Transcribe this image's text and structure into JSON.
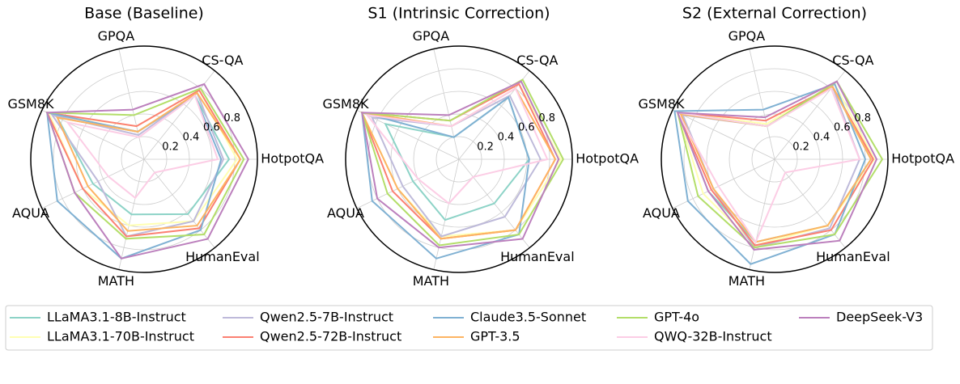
{
  "chart_data": [
    {
      "type": "radar",
      "title": "Base (Baseline)",
      "categories": [
        "HotpotQA",
        "CS-QA",
        "GPQA",
        "GSM8K",
        "AQUA",
        "MATH",
        "HumanEval"
      ],
      "ylim": [
        0,
        1
      ],
      "yticks": [
        0.2,
        0.4,
        0.6,
        0.8
      ],
      "grid": true,
      "series": [
        {
          "name": "LLaMA3.1-8B-Instruct",
          "color": "#8dd3c7",
          "values": [
            0.75,
            0.72,
            0.25,
            0.85,
            0.5,
            0.5,
            0.62
          ]
        },
        {
          "name": "LLaMA3.1-70B-Instruct",
          "color": "#ffffb3",
          "values": [
            0.82,
            0.78,
            0.3,
            0.93,
            0.6,
            0.6,
            0.7
          ]
        },
        {
          "name": "Qwen2.5-7B-Instruct",
          "color": "#bebada",
          "values": [
            0.7,
            0.75,
            0.22,
            0.9,
            0.45,
            0.7,
            0.7
          ]
        },
        {
          "name": "Qwen2.5-72B-Instruct",
          "color": "#fb8072",
          "values": [
            0.85,
            0.78,
            0.3,
            0.95,
            0.6,
            0.7,
            0.78
          ]
        },
        {
          "name": "Claude3.5-Sonnet",
          "color": "#80b1d3",
          "values": [
            0.68,
            0.72,
            0.25,
            0.95,
            0.85,
            0.9,
            0.8
          ]
        },
        {
          "name": "GPT-3.5",
          "color": "#fdb462",
          "values": [
            0.85,
            0.75,
            0.25,
            0.85,
            0.55,
            0.65,
            0.75
          ]
        },
        {
          "name": "GPT-4o",
          "color": "#b3de69",
          "values": [
            0.88,
            0.8,
            0.4,
            0.95,
            0.68,
            0.72,
            0.85
          ]
        },
        {
          "name": "QWQ-32B-Instruct",
          "color": "#fccde5",
          "values": [
            0.65,
            0.72,
            0.2,
            0.75,
            0.35,
            0.35,
            0.15
          ]
        },
        {
          "name": "DeepSeek-V3",
          "color": "#bc80bd",
          "values": [
            0.92,
            0.85,
            0.45,
            0.95,
            0.68,
            0.9,
            0.9
          ]
        }
      ]
    },
    {
      "type": "radar",
      "title": "S1 (Intrinsic Correction)",
      "categories": [
        "HotpotQA",
        "CS-QA",
        "GPQA",
        "GSM8K",
        "AQUA",
        "MATH",
        "HumanEval"
      ],
      "ylim": [
        0,
        1
      ],
      "yticks": [
        0.2,
        0.4,
        0.6,
        0.8
      ],
      "grid": true,
      "series": [
        {
          "color": "#8dd3c7",
          "values": [
            0.62,
            0.7,
            0.2,
            0.72,
            0.45,
            0.55,
            0.5
          ]
        },
        {
          "color": "#ffffb3",
          "values": [
            0.9,
            0.85,
            0.35,
            0.95,
            0.6,
            0.7,
            0.8
          ]
        },
        {
          "color": "#bebada",
          "values": [
            0.72,
            0.72,
            0.3,
            0.85,
            0.55,
            0.7,
            0.65
          ]
        },
        {
          "color": "#fb8072",
          "values": [
            0.85,
            0.85,
            0.35,
            0.95,
            0.65,
            0.72,
            0.8
          ]
        },
        {
          "color": "#80b1d3",
          "values": [
            0.62,
            0.7,
            0.2,
            0.95,
            0.85,
            0.9,
            0.85
          ]
        },
        {
          "color": "#fdb462",
          "values": [
            0.85,
            0.8,
            0.3,
            0.95,
            0.6,
            0.72,
            0.8
          ]
        },
        {
          "color": "#b3de69",
          "values": [
            0.92,
            0.9,
            0.35,
            0.95,
            0.7,
            0.78,
            0.85
          ]
        },
        {
          "color": "#fccde5",
          "values": [
            0.78,
            0.8,
            0.3,
            0.9,
            0.4,
            0.4,
            0.2
          ]
        },
        {
          "color": "#bc80bd",
          "values": [
            0.88,
            0.88,
            0.4,
            0.95,
            0.8,
            0.8,
            0.9
          ]
        }
      ]
    },
    {
      "type": "radar",
      "title": "S2 (External Correction)",
      "categories": [
        "HotpotQA",
        "CS-QA",
        "GPQA",
        "GSM8K",
        "AQUA",
        "MATH",
        "HumanEval"
      ],
      "ylim": [
        0,
        1
      ],
      "yticks": [
        0.2,
        0.4,
        0.6,
        0.8
      ],
      "grid": true,
      "series": [
        {
          "color": "#8dd3c7",
          "values": [
            0.85,
            0.82,
            0.3,
            0.95,
            0.65,
            0.75,
            0.75
          ]
        },
        {
          "color": "#ffffb3",
          "values": [
            0.88,
            0.85,
            0.32,
            0.95,
            0.7,
            0.78,
            0.75
          ]
        },
        {
          "color": "#bebada",
          "values": [
            0.75,
            0.82,
            0.3,
            0.9,
            0.6,
            0.8,
            0.78
          ]
        },
        {
          "color": "#fb8072",
          "values": [
            0.87,
            0.82,
            0.35,
            0.95,
            0.62,
            0.78,
            0.8
          ]
        },
        {
          "color": "#80b1d3",
          "values": [
            0.8,
            0.85,
            0.45,
            0.98,
            0.85,
            0.95,
            0.85
          ]
        },
        {
          "color": "#fdb462",
          "values": [
            0.85,
            0.82,
            0.3,
            0.92,
            0.6,
            0.75,
            0.75
          ]
        },
        {
          "color": "#b3de69",
          "values": [
            0.95,
            0.88,
            0.3,
            0.95,
            0.75,
            0.8,
            0.85
          ]
        },
        {
          "color": "#fccde5",
          "values": [
            0.75,
            0.8,
            0.3,
            0.95,
            0.55,
            0.75,
            0.15
          ]
        },
        {
          "color": "#bc80bd",
          "values": [
            0.9,
            0.88,
            0.38,
            0.95,
            0.65,
            0.82,
            0.92
          ]
        }
      ]
    }
  ]
}
